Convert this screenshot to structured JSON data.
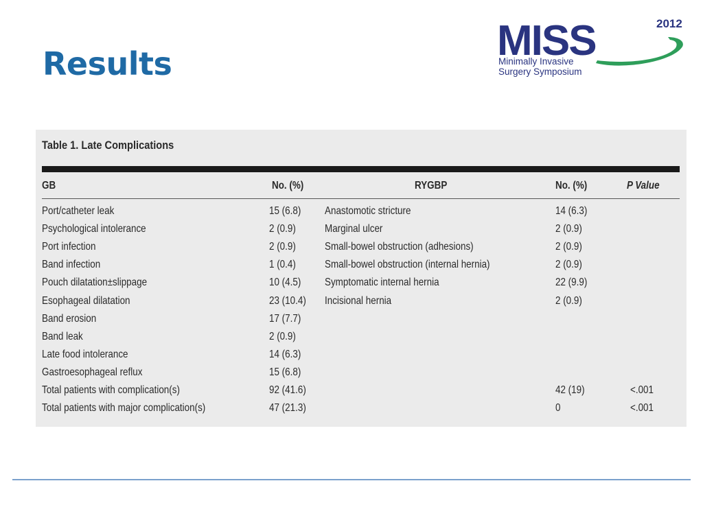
{
  "slide": {
    "title": "Results"
  },
  "logo": {
    "mark": "MISS",
    "year": "2012",
    "line1": "Minimally Invasive",
    "line2": "Surgery Symposium",
    "color": "#2a3480",
    "swoosh_color": "#2e9e5a"
  },
  "table": {
    "caption": "Table 1. Late Complications",
    "headers": {
      "gb": "GB",
      "gb_no": "No. (%)",
      "rygbp": "RYGBP",
      "rygbp_no": "No. (%)",
      "p_value": "P Value"
    },
    "rows": [
      {
        "gb": "Port/catheter leak",
        "gb_no": "15 (6.8)",
        "rygbp": "Anastomotic stricture",
        "rygbp_no": "14 (6.3)",
        "p": ""
      },
      {
        "gb": "Psychological intolerance",
        "gb_no": "2 (0.9)",
        "rygbp": "Marginal ulcer",
        "rygbp_no": "2 (0.9)",
        "p": ""
      },
      {
        "gb": "Port infection",
        "gb_no": "2 (0.9)",
        "rygbp": "Small-bowel obstruction (adhesions)",
        "rygbp_no": "2 (0.9)",
        "p": ""
      },
      {
        "gb": "Band infection",
        "gb_no": "1 (0.4)",
        "rygbp": "Small-bowel obstruction (internal hernia)",
        "rygbp_no": "2 (0.9)",
        "p": ""
      },
      {
        "gb": "Pouch dilatation±slippage",
        "gb_no": "10 (4.5)",
        "rygbp": "Symptomatic internal hernia",
        "rygbp_no": "22 (9.9)",
        "p": ""
      },
      {
        "gb": "Esophageal dilatation",
        "gb_no": "23 (10.4)",
        "rygbp": "Incisional hernia",
        "rygbp_no": "2 (0.9)",
        "p": ""
      },
      {
        "gb": "Band erosion",
        "gb_no": "17 (7.7)",
        "rygbp": "",
        "rygbp_no": "",
        "p": ""
      },
      {
        "gb": "Band leak",
        "gb_no": "2 (0.9)",
        "rygbp": "",
        "rygbp_no": "",
        "p": ""
      },
      {
        "gb": "Late food intolerance",
        "gb_no": "14 (6.3)",
        "rygbp": "",
        "rygbp_no": "",
        "p": ""
      },
      {
        "gb": "Gastroesophageal reflux",
        "gb_no": "15 (6.8)",
        "rygbp": "",
        "rygbp_no": "",
        "p": ""
      },
      {
        "gb": "Total patients with complication(s)",
        "gb_no": "92 (41.6)",
        "rygbp": "",
        "rygbp_no": "42 (19)",
        "p": "<.001"
      },
      {
        "gb": "Total patients with major complication(s)",
        "gb_no": "47 (21.3)",
        "rygbp": "",
        "rygbp_no": "0",
        "p": "<.001"
      }
    ]
  }
}
